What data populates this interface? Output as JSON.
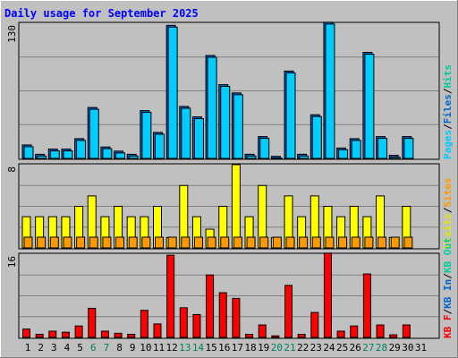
{
  "chart_data": [
    {
      "type": "bar",
      "title": "Daily usage for September 2025",
      "ymax_label": "130",
      "ylim": [
        0,
        130
      ],
      "legend": [
        "Pages",
        "/",
        "Files",
        "/",
        "Hits"
      ],
      "categories": [
        "1",
        "2",
        "3",
        "4",
        "5",
        "6",
        "7",
        "8",
        "9",
        "10",
        "11",
        "12",
        "13",
        "14",
        "15",
        "16",
        "17",
        "18",
        "19",
        "20",
        "21",
        "22",
        "23",
        "24",
        "25",
        "26",
        "27",
        "28",
        "29",
        "30",
        "31"
      ],
      "weekend_days": [
        6,
        7,
        13,
        14,
        20,
        21,
        27,
        28
      ],
      "series": [
        {
          "name": "Pages",
          "color": "#0066cc",
          "values": [
            13,
            4,
            9,
            9,
            19,
            49,
            11,
            7,
            4,
            46,
            25,
            128,
            50,
            40,
            99,
            71,
            63,
            4,
            21,
            2,
            84,
            4,
            42,
            131,
            10,
            19,
            102,
            21,
            3,
            21,
            0
          ]
        },
        {
          "name": "Files",
          "color": "#00ccff",
          "values": [
            13,
            4,
            9,
            9,
            19,
            49,
            11,
            7,
            4,
            46,
            25,
            128,
            50,
            40,
            99,
            71,
            63,
            4,
            21,
            2,
            84,
            4,
            42,
            131,
            10,
            19,
            102,
            21,
            3,
            21,
            0
          ]
        },
        {
          "name": "Hits",
          "color": "#00cc99",
          "values": [
            13,
            4,
            9,
            9,
            19,
            49,
            11,
            7,
            4,
            46,
            25,
            128,
            50,
            40,
            99,
            71,
            63,
            4,
            21,
            2,
            84,
            4,
            42,
            131,
            10,
            19,
            102,
            21,
            3,
            21,
            0
          ]
        }
      ]
    },
    {
      "type": "bar",
      "ymax_label": "8",
      "ylim": [
        0,
        8
      ],
      "legend": [
        "Visits",
        "/",
        "Sites"
      ],
      "series": [
        {
          "name": "Visits",
          "color": "#ffff00",
          "values": [
            3,
            3,
            3,
            3,
            4,
            5,
            3,
            4,
            3,
            3,
            4,
            1,
            6,
            3,
            1.8,
            4,
            8,
            3,
            6,
            1,
            5,
            3,
            5,
            4,
            3,
            4,
            3,
            5,
            1,
            4,
            0
          ]
        },
        {
          "name": "Sites",
          "color": "#ff9900",
          "values": [
            1,
            1,
            1,
            1,
            1,
            1,
            1,
            1,
            1,
            1,
            1,
            1,
            1,
            1,
            1,
            1,
            1,
            1,
            1,
            1,
            1,
            1,
            1,
            1,
            1,
            1,
            1,
            1,
            1,
            1,
            0
          ]
        }
      ]
    },
    {
      "type": "bar",
      "ymax_label": "16",
      "ylim": [
        0,
        16
      ],
      "legend": [
        "KB F",
        "/",
        "KB In",
        "/",
        "KB Out"
      ],
      "series": [
        {
          "name": "KB F",
          "color": "#ff0000",
          "values": [
            1.6,
            0.6,
            1.2,
            1.0,
            2.2,
            5.6,
            1.2,
            0.8,
            0.6,
            5.2,
            2.6,
            15.8,
            5.7,
            4.4,
            12.0,
            8.6,
            7.5,
            0.6,
            2.4,
            0.3,
            10.0,
            0.6,
            4.8,
            16.2,
            1.2,
            2.2,
            12.2,
            2.4,
            0.5,
            2.4,
            0
          ]
        }
      ]
    }
  ],
  "colors": {
    "background": "#c0c0c0",
    "frame": "#e8e8e8",
    "title": "#0000ff",
    "weekday_label": "#000000",
    "weekend_label": "#00805c",
    "legend_pages": "#00ccff",
    "legend_files": "#0066cc",
    "legend_hits": "#00cc99",
    "legend_visits": "#ffff00",
    "legend_sites": "#ff9900",
    "legend_kbf": "#ff0000",
    "legend_kbin": "#0066cc",
    "legend_kbout": "#00cc99"
  }
}
